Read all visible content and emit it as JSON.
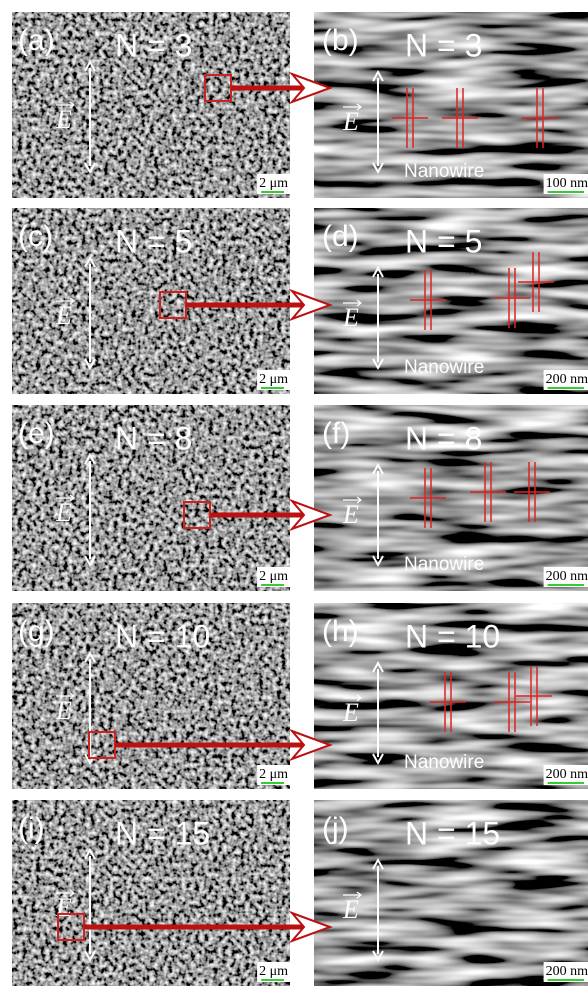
{
  "rows": [
    {
      "left": {
        "label": "(a)",
        "n": "N = 3",
        "field": "E",
        "scale": "2 μm"
      },
      "right": {
        "label": "(b)",
        "n": "N = 3",
        "field": "E",
        "annotation": "Nanowire",
        "scale": "100 nm"
      }
    },
    {
      "left": {
        "label": "(c)",
        "n": "N = 5",
        "field": "E",
        "scale": "2 μm"
      },
      "right": {
        "label": "(d)",
        "n": "N = 5",
        "field": "E",
        "annotation": "Nanowire",
        "scale": "200 nm"
      }
    },
    {
      "left": {
        "label": "(e)",
        "n": "N = 8",
        "field": "E",
        "scale": "2 μm"
      },
      "right": {
        "label": "(f)",
        "n": "N = 8",
        "field": "E",
        "annotation": "Nanowire",
        "scale": "200 nm"
      }
    },
    {
      "left": {
        "label": "(g)",
        "n": "N = 10",
        "field": "E",
        "scale": "2 μm"
      },
      "right": {
        "label": "(h)",
        "n": "N = 10",
        "field": "E",
        "annotation": "Nanowire",
        "scale": "200 nm"
      }
    },
    {
      "left": {
        "label": "(i)",
        "n": "N = 15",
        "field": "E",
        "scale": "2 μm"
      },
      "right": {
        "label": "(j)",
        "n": "N = 15",
        "field": "E",
        "scale": "200 nm"
      }
    }
  ]
}
